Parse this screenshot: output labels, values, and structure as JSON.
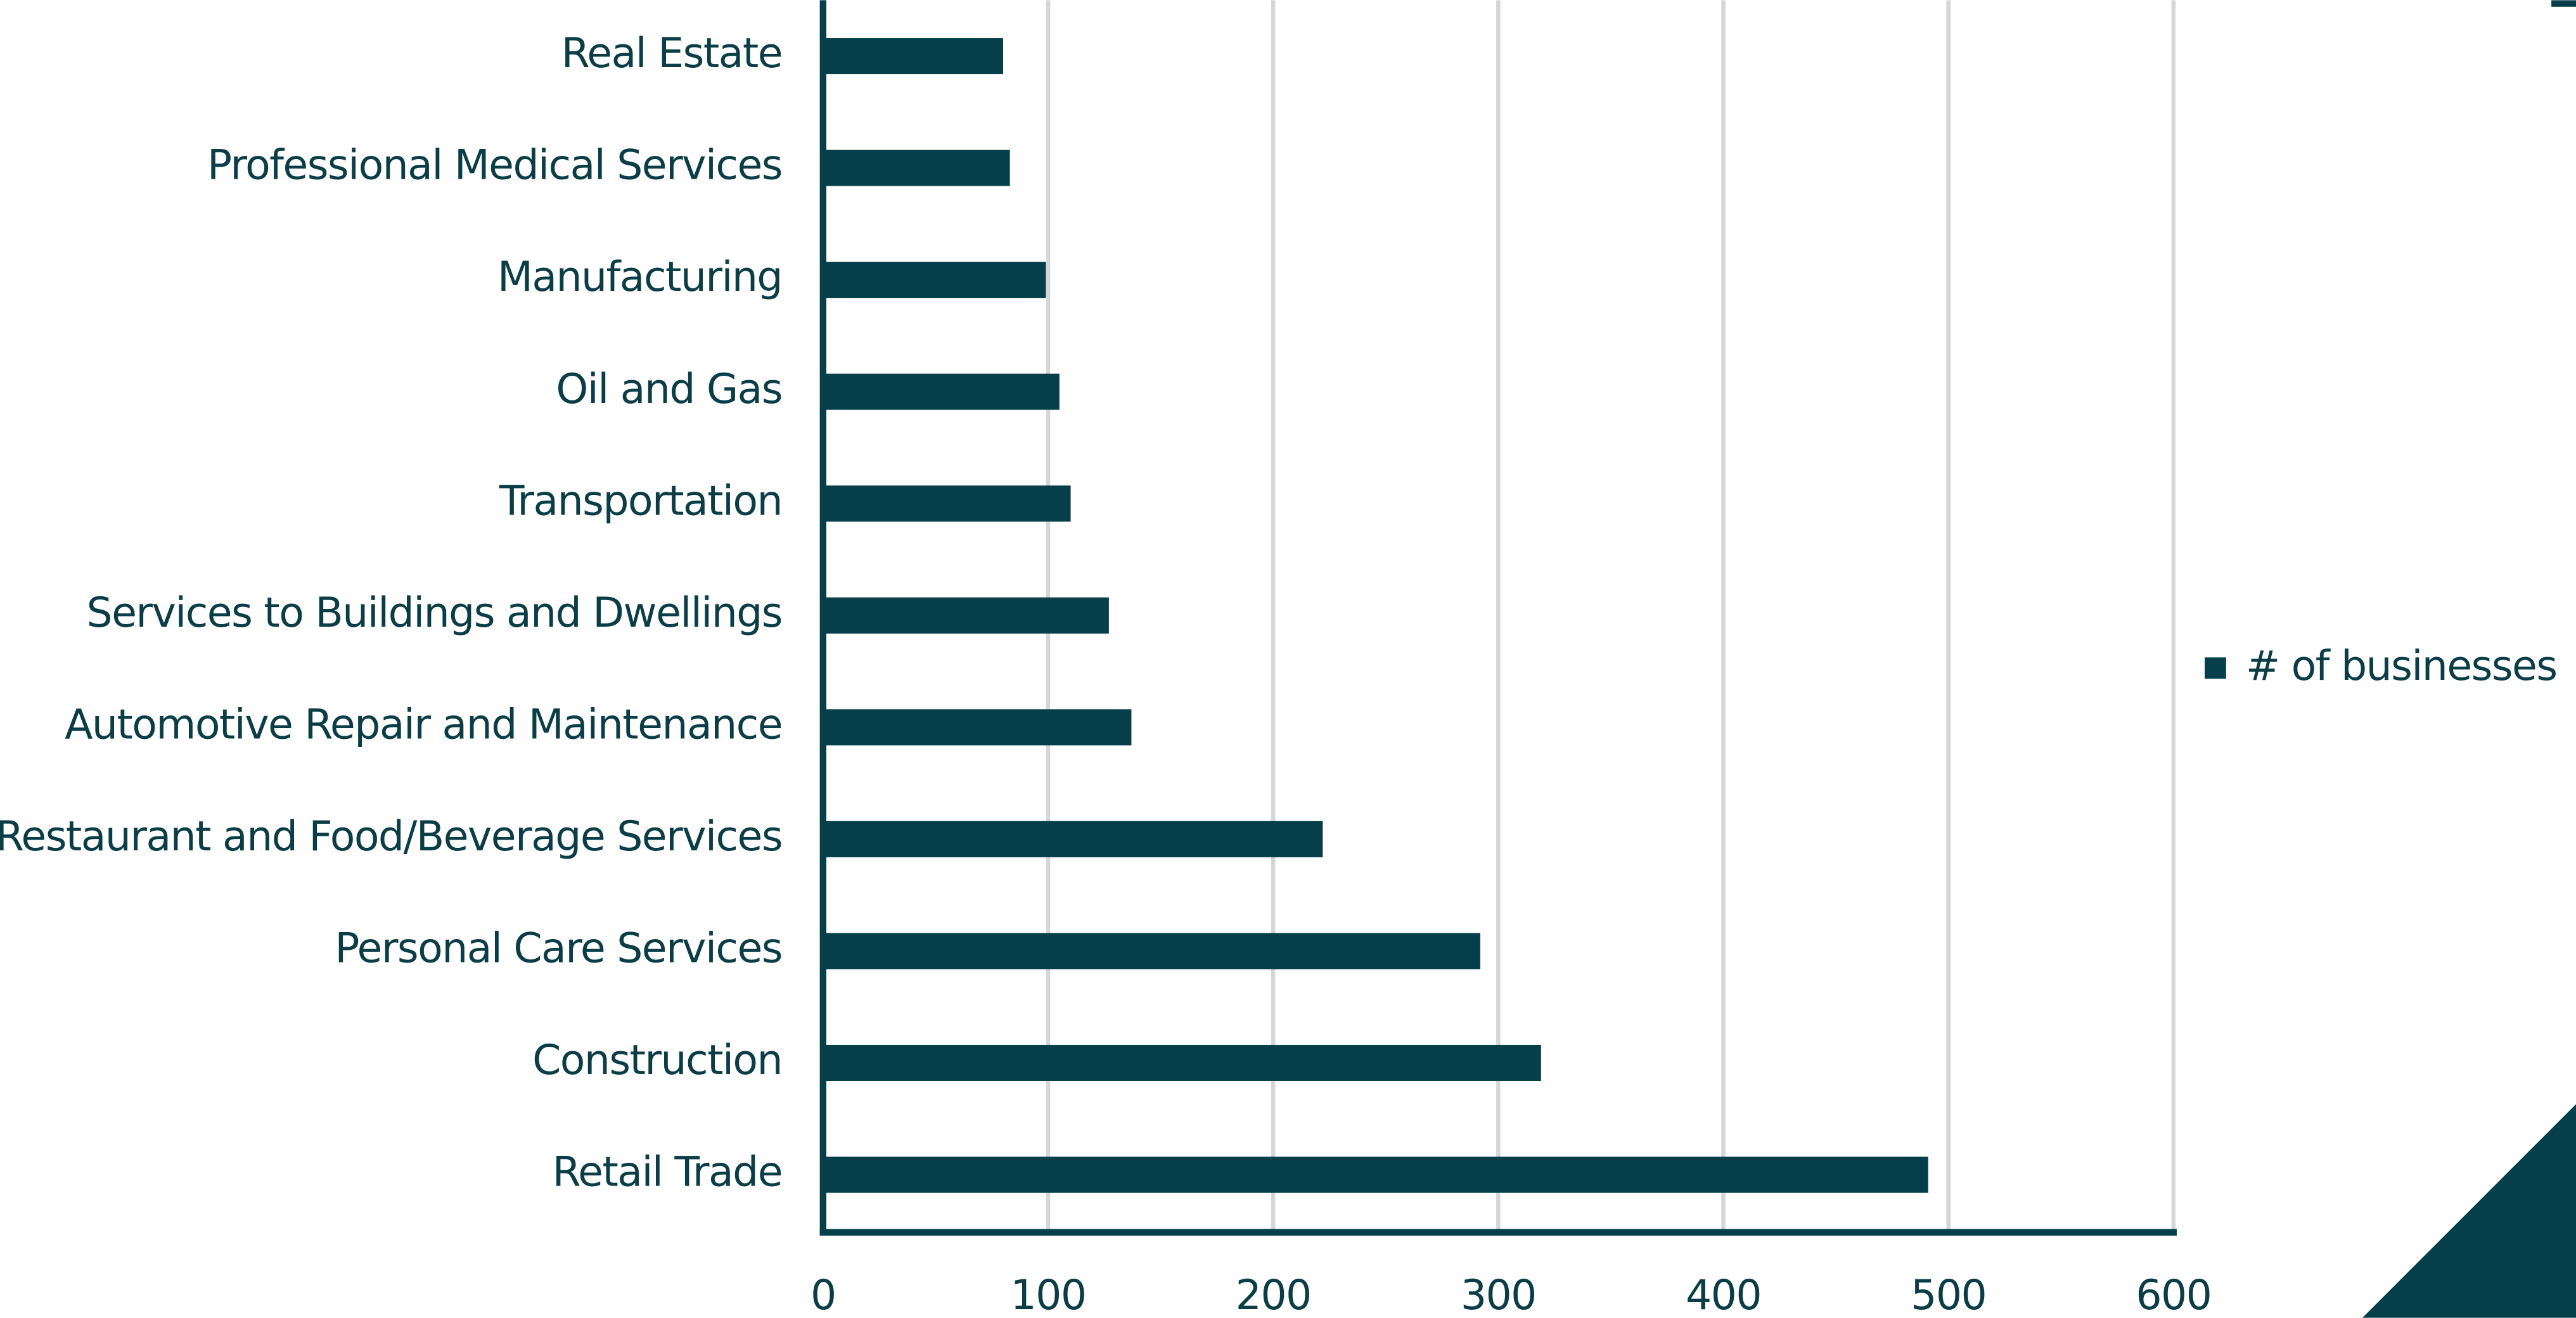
{
  "chart_data": {
    "type": "bar",
    "orientation": "horizontal",
    "categories": [
      "Retail Trade",
      "Construction",
      "Personal Care Services",
      "Restaurant and Food/Beverage Services",
      "Automotive Repair and Maintenance",
      "Services to Buildings and Dwellings",
      "Transportation",
      "Oil and Gas",
      "Manufacturing",
      "Professional Medical Services",
      "Real Estate"
    ],
    "series": [
      {
        "name": "# of businesses",
        "color": "#063f4a",
        "values": [
          491,
          319,
          292,
          222,
          137,
          127,
          110,
          105,
          99,
          83,
          80
        ]
      }
    ],
    "xlim": [
      0,
      600
    ],
    "xticks": [
      0,
      100,
      200,
      300,
      400,
      500,
      600
    ],
    "grid": true,
    "legend": "right"
  }
}
